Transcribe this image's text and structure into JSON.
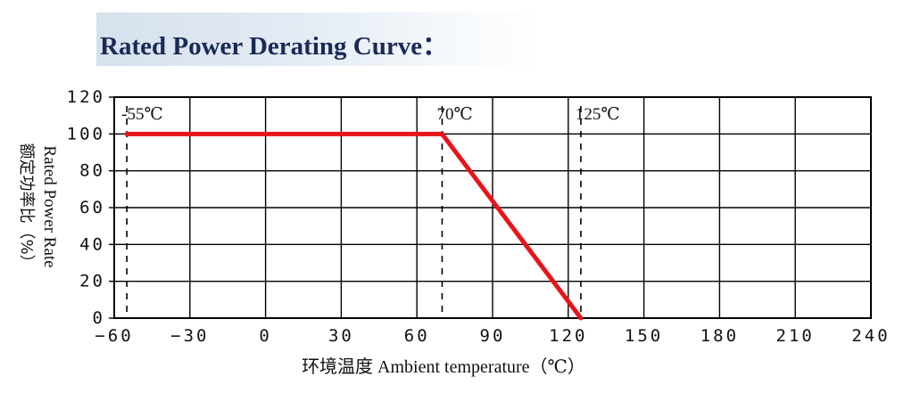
{
  "title": "Rated Power Derating Curve：",
  "colors": {
    "curve": "#e8141b",
    "grid": "#000000",
    "title": "#1a2a57",
    "title_bg": "#d6e1ee"
  },
  "chart_data": {
    "type": "line",
    "title": "Rated Power Derating Curve：",
    "xlabel": "环境温度 Ambient temperature（℃）",
    "ylabel_cn": "额定功率比（%）",
    "ylabel_en": "Rated Power Rate",
    "xlim": [
      -60,
      240
    ],
    "ylim": [
      0,
      120
    ],
    "xticks": [
      -60,
      -30,
      0,
      30,
      60,
      90,
      120,
      150,
      180,
      210,
      240
    ],
    "yticks": [
      0,
      20,
      40,
      60,
      80,
      100,
      120
    ],
    "grid": true,
    "series": [
      {
        "x": [
          -55,
          70,
          125
        ],
        "y": [
          100,
          100,
          0
        ]
      }
    ],
    "reference_lines": [
      {
        "x": -55,
        "label": "-55℃"
      },
      {
        "x": 70,
        "label": "70℃"
      },
      {
        "x": 125,
        "label": "125℃"
      }
    ]
  }
}
